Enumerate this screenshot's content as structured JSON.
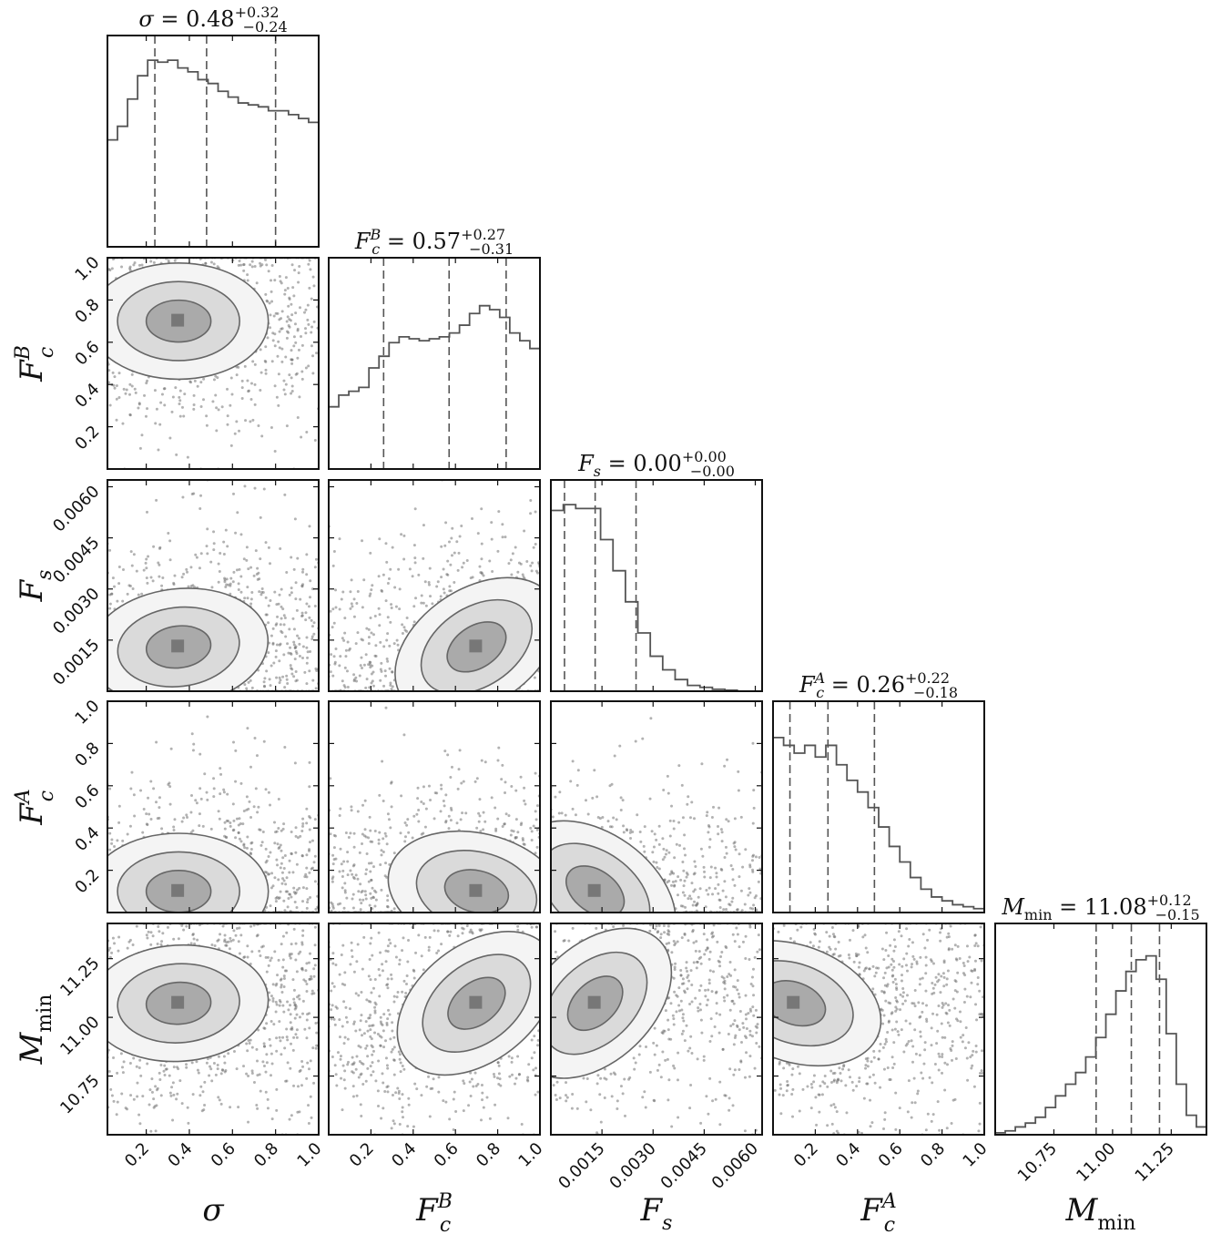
{
  "chart_data": {
    "type": "corner",
    "parameters": [
      {
        "key": "sigma",
        "label": "σ",
        "sub": "",
        "sup": "",
        "range": [
          0.02,
          1.0
        ],
        "ticks": [
          0.2,
          0.4,
          0.6,
          0.8,
          1.0
        ],
        "tick_labels": [
          "0.2",
          "0.4",
          "0.6",
          "0.8",
          "1.0"
        ],
        "title": {
          "value": "0.48",
          "plus": "+0.32",
          "minus": "−0.24"
        },
        "quantiles": [
          0.24,
          0.48,
          0.8
        ],
        "hist": [
          0.55,
          0.62,
          0.76,
          0.88,
          0.96,
          0.95,
          0.96,
          0.92,
          0.9,
          0.86,
          0.84,
          0.8,
          0.77,
          0.74,
          0.73,
          0.72,
          0.7,
          0.7,
          0.68,
          0.66,
          0.64
        ]
      },
      {
        "key": "FcB",
        "label": "F",
        "sub": "c",
        "sup": "B",
        "range": [
          0.0,
          1.0
        ],
        "ticks": [
          0.2,
          0.4,
          0.6,
          0.8,
          1.0
        ],
        "tick_labels": [
          "0.2",
          "0.4",
          "0.6",
          "0.8",
          "1.0"
        ],
        "title": {
          "value": "0.57",
          "plus": "+0.27",
          "minus": "−0.31"
        },
        "quantiles": [
          0.26,
          0.57,
          0.84
        ],
        "hist": [
          0.32,
          0.38,
          0.4,
          0.42,
          0.52,
          0.58,
          0.65,
          0.68,
          0.67,
          0.66,
          0.67,
          0.68,
          0.7,
          0.74,
          0.8,
          0.84,
          0.82,
          0.78,
          0.7,
          0.66,
          0.62
        ]
      },
      {
        "key": "Fs",
        "label": "F",
        "sub": "s",
        "sup": "",
        "range": [
          0.0,
          0.0062
        ],
        "ticks": [
          0.0015,
          0.003,
          0.0045,
          0.006
        ],
        "tick_labels": [
          "0.0015",
          "0.0030",
          "0.0045",
          "0.0060"
        ],
        "title": {
          "value": "0.00",
          "plus": "+0.00",
          "minus": "−0.00"
        },
        "quantiles": [
          0.0004,
          0.0013,
          0.0025
        ],
        "hist": [
          0.93,
          0.96,
          0.94,
          0.94,
          0.78,
          0.62,
          0.46,
          0.3,
          0.18,
          0.11,
          0.06,
          0.03,
          0.02,
          0.01,
          0.005,
          0.0,
          0.0
        ]
      },
      {
        "key": "FcA",
        "label": "F",
        "sub": "c",
        "sup": "A",
        "range": [
          0.0,
          1.0
        ],
        "ticks": [
          0.2,
          0.4,
          0.6,
          0.8,
          1.0
        ],
        "tick_labels": [
          "0.2",
          "0.4",
          "0.6",
          "0.8",
          "1.0"
        ],
        "title": {
          "value": "0.26",
          "plus": "+0.22",
          "minus": "−0.18"
        },
        "quantiles": [
          0.08,
          0.26,
          0.48
        ],
        "hist": [
          0.9,
          0.86,
          0.82,
          0.86,
          0.8,
          0.86,
          0.76,
          0.68,
          0.62,
          0.54,
          0.44,
          0.34,
          0.26,
          0.18,
          0.12,
          0.08,
          0.06,
          0.04,
          0.03,
          0.02
        ]
      },
      {
        "key": "Mmin",
        "label": "M",
        "sub": "min",
        "sup": "",
        "range": [
          10.5,
          11.4
        ],
        "ticks": [
          10.75,
          11.0,
          11.25
        ],
        "tick_labels": [
          "10.75",
          "11.00",
          "11.25"
        ],
        "title": {
          "value": "11.08",
          "plus": "+0.12",
          "minus": "−0.15"
        },
        "quantiles": [
          10.93,
          11.08,
          11.2
        ],
        "hist": [
          0.01,
          0.02,
          0.04,
          0.06,
          0.09,
          0.14,
          0.2,
          0.26,
          0.32,
          0.4,
          0.5,
          0.62,
          0.74,
          0.84,
          0.9,
          0.92,
          0.8,
          0.52,
          0.26,
          0.1,
          0.04
        ]
      }
    ],
    "density": {
      "rho": [
        [],
        [
          0
        ],
        [
          0.1,
          0.55
        ],
        [
          0,
          -0.2,
          -0.6
        ],
        [
          0.05,
          0.65,
          0.8,
          -0.3
        ]
      ],
      "modes": [
        0.35,
        0.7,
        0.0013,
        0.1,
        11.06
      ]
    },
    "style": {
      "hist_color": "#555555",
      "contour_color": "#555555",
      "frame_color": "#111111"
    }
  }
}
